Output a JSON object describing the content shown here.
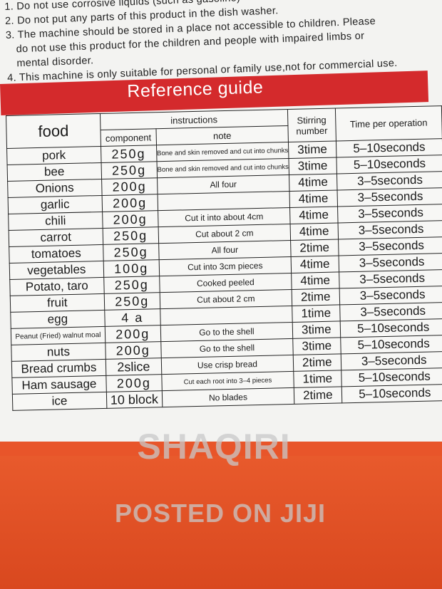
{
  "notes": [
    "1. Do not use corrosive liquids (such as gasoline)",
    "2. Do not put any parts of this product in the dish washer.",
    "3. The machine should be stored in a place not accessible to children. Please",
    "do not use this product for the children and people with impaired limbs or",
    "mental disorder.",
    "4. This machine is only suitable for personal or family use,not for commercial use."
  ],
  "banner_title": "Reference guide",
  "table": {
    "headers": {
      "food": "food",
      "instructions": "instructions",
      "component": "component",
      "note": "note",
      "stirring": "Stirring number",
      "time": "Time per operation"
    },
    "rows": [
      {
        "food": "pork",
        "component": "250g",
        "note": "Bone and skin removed and cut into chunks",
        "stirring": "3time",
        "time": "5–10seconds"
      },
      {
        "food": "bee",
        "component": "250g",
        "note": "Bone and skin removed and cut into chunks",
        "stirring": "3time",
        "time": "5–10seconds"
      },
      {
        "food": "Onions",
        "component": "200g",
        "note": "All four",
        "stirring": "4time",
        "time": "3–5seconds"
      },
      {
        "food": "garlic",
        "component": "200g",
        "note": "",
        "stirring": "4time",
        "time": "3–5seconds"
      },
      {
        "food": "chili",
        "component": "200g",
        "note": "Cut it into about 4cm",
        "stirring": "4time",
        "time": "3–5seconds"
      },
      {
        "food": "carrot",
        "component": "250g",
        "note": "Cut about 2 cm",
        "stirring": "4time",
        "time": "3–5seconds"
      },
      {
        "food": "tomatoes",
        "component": "250g",
        "note": "All four",
        "stirring": "2time",
        "time": "3–5seconds"
      },
      {
        "food": "vegetables",
        "component": "100g",
        "note": "Cut into 3cm pieces",
        "stirring": "4time",
        "time": "3–5seconds"
      },
      {
        "food": "Potato, taro",
        "component": "250g",
        "note": "Cooked peeled",
        "stirring": "4time",
        "time": "3–5seconds"
      },
      {
        "food": "fruit",
        "component": "250g",
        "note": "Cut about 2 cm",
        "stirring": "2time",
        "time": "3–5seconds"
      },
      {
        "food": "egg",
        "component": "4 a",
        "note": "",
        "stirring": "1time",
        "time": "3–5seconds"
      },
      {
        "food": "Peanut (Fried) walnut moal",
        "component": "200g",
        "note": "Go to the shell",
        "stirring": "3time",
        "time": "5–10seconds"
      },
      {
        "food": "nuts",
        "component": "200g",
        "note": "Go to the shell",
        "stirring": "3time",
        "time": "5–10seconds"
      },
      {
        "food": "Bread crumbs",
        "component": "2slice",
        "note": "Use crisp bread",
        "stirring": "2time",
        "time": "3–5seconds"
      },
      {
        "food": "Ham sausage",
        "component": "200g",
        "note": "Cut each root into 3–4 pieces",
        "stirring": "1time",
        "time": "5–10seconds"
      },
      {
        "food": "ice",
        "component": "10 block",
        "note": "No blades",
        "stirring": "2time",
        "time": "5–10seconds"
      }
    ]
  },
  "watermark": {
    "line1": "SHAQIRI",
    "line2": "POSTED ON JIJI"
  }
}
